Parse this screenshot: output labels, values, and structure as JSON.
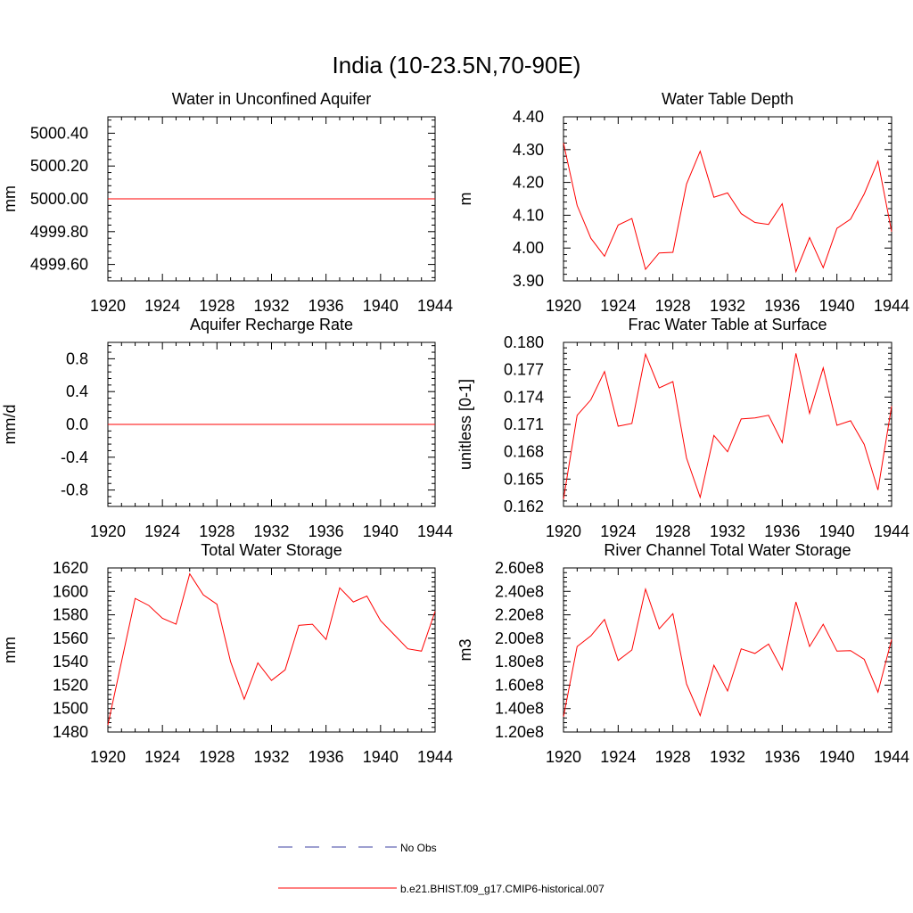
{
  "figure": {
    "title": "India (10-23.5N,70-90E)"
  },
  "legend": {
    "placement": "bottom-center",
    "items": [
      {
        "label": "No Obs",
        "color": "#3b3fa0",
        "style": "dashed"
      },
      {
        "label": "b.e21.BHIST.f09_g17.CMIP6-historical.007",
        "color": "#ff0000",
        "style": "solid"
      }
    ]
  },
  "chart_data": [
    {
      "type": "line",
      "title": "Water in Unconfined Aquifer",
      "ylabel": "mm",
      "xlim": [
        1920,
        1944
      ],
      "ylim": [
        4999.5,
        5000.5
      ],
      "xticks": [
        1920,
        1924,
        1928,
        1932,
        1936,
        1940,
        1944
      ],
      "xtick_labels": [
        "1920",
        "1924",
        "1928",
        "1932",
        "1936",
        "1940",
        "1944"
      ],
      "yticks": [
        4999.6,
        4999.8,
        5000.0,
        5000.2,
        5000.4
      ],
      "ytick_labels": [
        "4999.60",
        "4999.80",
        "5000.00",
        "5000.20",
        "5000.40"
      ],
      "series": [
        {
          "color": "#ff0000",
          "x": [
            1920,
            1944
          ],
          "y": [
            5000.0,
            5000.0
          ]
        }
      ]
    },
    {
      "type": "line",
      "title": "Water Table Depth",
      "ylabel": "m",
      "xlim": [
        1920,
        1944
      ],
      "ylim": [
        3.9,
        4.4
      ],
      "xticks": [
        1920,
        1924,
        1928,
        1932,
        1936,
        1940,
        1944
      ],
      "xtick_labels": [
        "1920",
        "1924",
        "1928",
        "1932",
        "1936",
        "1940",
        "1944"
      ],
      "yticks": [
        3.9,
        4.0,
        4.1,
        4.2,
        4.3,
        4.4
      ],
      "ytick_labels": [
        "3.90",
        "4.00",
        "4.10",
        "4.20",
        "4.30",
        "4.40"
      ],
      "series": [
        {
          "color": "#ff0000",
          "x": [
            1920,
            1921,
            1922,
            1923,
            1924,
            1925,
            1926,
            1927,
            1928,
            1929,
            1930,
            1931,
            1932,
            1933,
            1934,
            1935,
            1936,
            1937,
            1938,
            1939,
            1940,
            1941,
            1942,
            1943,
            1944
          ],
          "y": [
            4.32,
            4.13,
            4.03,
            3.975,
            4.07,
            4.09,
            3.935,
            3.985,
            3.987,
            4.195,
            4.295,
            4.155,
            4.168,
            4.105,
            4.078,
            4.072,
            4.135,
            3.928,
            4.032,
            3.94,
            4.06,
            4.088,
            4.165,
            4.265,
            4.05
          ]
        }
      ]
    },
    {
      "type": "line",
      "title": "Aquifer Recharge Rate",
      "ylabel": "mm/d",
      "xlim": [
        1920,
        1944
      ],
      "ylim": [
        -1.0,
        1.0
      ],
      "xticks": [
        1920,
        1924,
        1928,
        1932,
        1936,
        1940,
        1944
      ],
      "xtick_labels": [
        "1920",
        "1924",
        "1928",
        "1932",
        "1936",
        "1940",
        "1944"
      ],
      "yticks": [
        -0.8,
        -0.4,
        0.0,
        0.4,
        0.8
      ],
      "ytick_labels": [
        "-0.8",
        "-0.4",
        "0.0",
        "0.4",
        "0.8"
      ],
      "series": [
        {
          "color": "#ff0000",
          "x": [
            1920,
            1944
          ],
          "y": [
            0.0,
            0.0
          ]
        }
      ]
    },
    {
      "type": "line",
      "title": "Frac Water Table at Surface",
      "ylabel": "unitless [0-1]",
      "xlim": [
        1920,
        1944
      ],
      "ylim": [
        0.162,
        0.18
      ],
      "xticks": [
        1920,
        1924,
        1928,
        1932,
        1936,
        1940,
        1944
      ],
      "xtick_labels": [
        "1920",
        "1924",
        "1928",
        "1932",
        "1936",
        "1940",
        "1944"
      ],
      "yticks": [
        0.162,
        0.165,
        0.168,
        0.171,
        0.174,
        0.177,
        0.18
      ],
      "ytick_labels": [
        "0.162",
        "0.165",
        "0.168",
        "0.171",
        "0.174",
        "0.177",
        "0.180"
      ],
      "series": [
        {
          "color": "#ff0000",
          "x": [
            1920,
            1921,
            1922,
            1923,
            1924,
            1925,
            1926,
            1927,
            1928,
            1929,
            1930,
            1931,
            1932,
            1933,
            1934,
            1935,
            1936,
            1937,
            1938,
            1939,
            1940,
            1941,
            1942,
            1943,
            1944
          ],
          "y": [
            0.1628,
            0.172,
            0.1737,
            0.1768,
            0.1708,
            0.1711,
            0.1787,
            0.175,
            0.1757,
            0.1673,
            0.163,
            0.1698,
            0.168,
            0.1716,
            0.1717,
            0.172,
            0.169,
            0.1788,
            0.1722,
            0.1772,
            0.1709,
            0.1714,
            0.1688,
            0.1638,
            0.173
          ]
        }
      ]
    },
    {
      "type": "line",
      "title": "Total Water Storage",
      "ylabel": "mm",
      "xlim": [
        1920,
        1944
      ],
      "ylim": [
        1480,
        1620
      ],
      "xticks": [
        1920,
        1924,
        1928,
        1932,
        1936,
        1940,
        1944
      ],
      "xtick_labels": [
        "1920",
        "1924",
        "1928",
        "1932",
        "1936",
        "1940",
        "1944"
      ],
      "yticks": [
        1480,
        1500,
        1520,
        1540,
        1560,
        1580,
        1600,
        1620
      ],
      "ytick_labels": [
        "1480",
        "1500",
        "1520",
        "1540",
        "1560",
        "1580",
        "1600",
        "1620"
      ],
      "series": [
        {
          "color": "#ff0000",
          "x": [
            1920,
            1921,
            1922,
            1923,
            1924,
            1925,
            1926,
            1927,
            1928,
            1929,
            1930,
            1931,
            1932,
            1933,
            1934,
            1935,
            1936,
            1937,
            1938,
            1939,
            1940,
            1941,
            1942,
            1943,
            1944
          ],
          "y": [
            1486,
            1540,
            1594,
            1588,
            1577,
            1572,
            1615,
            1597,
            1589,
            1540,
            1508,
            1539,
            1524,
            1533,
            1571,
            1572,
            1559,
            1603,
            1591,
            1596,
            1575,
            1563,
            1551,
            1549,
            1583
          ]
        }
      ]
    },
    {
      "type": "line",
      "title": "River Channel Total Water Storage",
      "ylabel": "m3",
      "xlim": [
        1920,
        1944
      ],
      "ylim": [
        120000000,
        260000000
      ],
      "xticks": [
        1920,
        1924,
        1928,
        1932,
        1936,
        1940,
        1944
      ],
      "xtick_labels": [
        "1920",
        "1924",
        "1928",
        "1932",
        "1936",
        "1940",
        "1944"
      ],
      "yticks": [
        120000000,
        140000000,
        160000000,
        180000000,
        200000000,
        220000000,
        240000000,
        260000000
      ],
      "ytick_labels": [
        "1.20e8",
        "1.40e8",
        "1.60e8",
        "1.80e8",
        "2.00e8",
        "2.20e8",
        "2.40e8",
        "2.60e8"
      ],
      "series": [
        {
          "color": "#ff0000",
          "x": [
            1920,
            1921,
            1922,
            1923,
            1924,
            1925,
            1926,
            1927,
            1928,
            1929,
            1930,
            1931,
            1932,
            1933,
            1934,
            1935,
            1936,
            1937,
            1938,
            1939,
            1940,
            1941,
            1942,
            1943,
            1944
          ],
          "y": [
            133000000,
            193000000,
            202000000,
            216000000,
            181000000,
            190000000,
            242000000,
            208000000,
            221000000,
            161000000,
            134000000,
            177000000,
            155000000,
            191000000,
            187000000,
            195000000,
            173000000,
            231000000,
            193000000,
            212000000,
            189000000,
            189500000,
            182000000,
            154000000,
            199000000
          ]
        }
      ]
    }
  ]
}
